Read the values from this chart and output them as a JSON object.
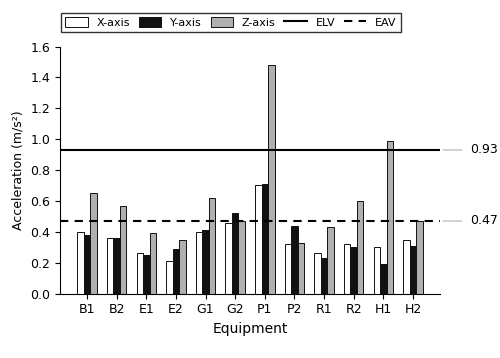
{
  "categories": [
    "B1",
    "B2",
    "E1",
    "E2",
    "G1",
    "G2",
    "P1",
    "P2",
    "R1",
    "R2",
    "H1",
    "H2"
  ],
  "x_axis": [
    0.4,
    0.36,
    0.26,
    0.21,
    0.4,
    0.46,
    0.7,
    0.32,
    0.26,
    0.32,
    0.3,
    0.35
  ],
  "y_axis": [
    0.38,
    0.36,
    0.25,
    0.29,
    0.41,
    0.52,
    0.71,
    0.44,
    0.23,
    0.3,
    0.19,
    0.31
  ],
  "z_axis": [
    0.65,
    0.57,
    0.39,
    0.35,
    0.62,
    0.47,
    1.48,
    0.33,
    0.43,
    0.6,
    0.99,
    0.47
  ],
  "elv": 0.93,
  "eav": 0.47,
  "ylabel": "Acceleration (m/s²)",
  "xlabel": "Equipment",
  "ylim": [
    0,
    1.6
  ],
  "yticks": [
    0,
    0.2,
    0.4,
    0.6,
    0.8,
    1.0,
    1.2,
    1.4,
    1.6
  ],
  "bar_width": 0.22,
  "x_color": "white",
  "y_color": "#111111",
  "z_color": "#b0b0b0",
  "edge_color": "#111111",
  "elv_label": "ELV",
  "eav_label": "EAV",
  "elv_annotation": "0.93",
  "eav_annotation": "0.47",
  "legend_fontsize": 8,
  "axis_fontsize": 9,
  "xlabel_fontsize": 10
}
